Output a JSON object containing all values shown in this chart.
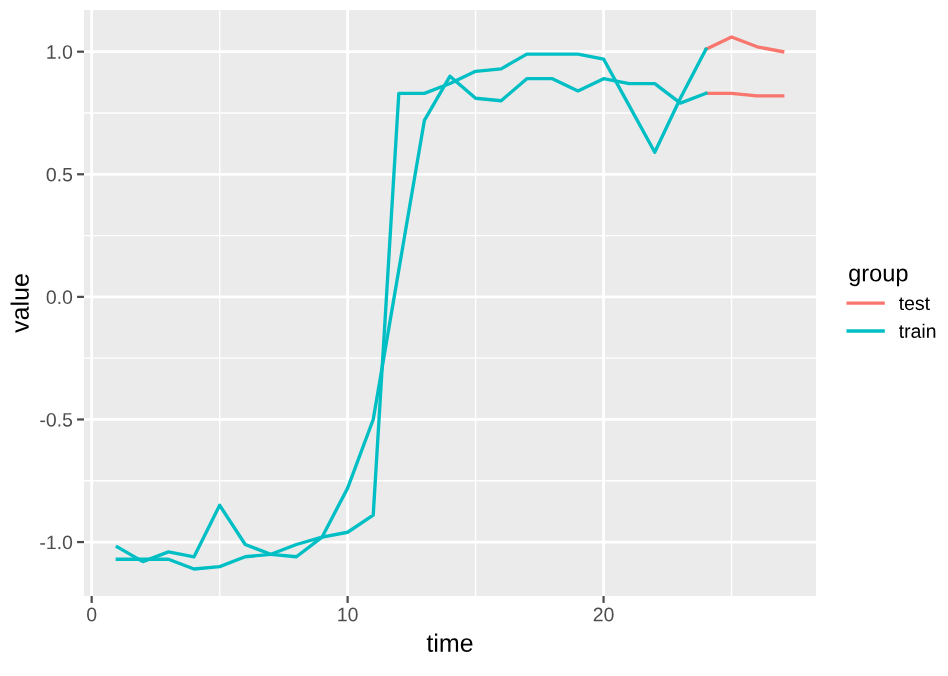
{
  "chart_data": {
    "type": "line",
    "xlabel": "time",
    "ylabel": "value",
    "legend_title": "group",
    "series": [
      {
        "name": "test",
        "color": "#f8766d",
        "x": [
          24,
          25,
          26,
          27
        ],
        "values": [
          0.83,
          0.83,
          0.82,
          0.82
        ]
      },
      {
        "color": "#f8766d",
        "x": [
          24,
          25,
          26,
          27
        ],
        "values": [
          1.01,
          1.06,
          1.02,
          1.0
        ]
      },
      {
        "name": "train",
        "color": "#00bfc4",
        "x": [
          1,
          2,
          3,
          4,
          5,
          6,
          7,
          8,
          9,
          10,
          11,
          12,
          13,
          14,
          15,
          16,
          17,
          18,
          19,
          20,
          21,
          22,
          23,
          24
        ],
        "values": [
          -1.07,
          -1.07,
          -1.07,
          -1.11,
          -1.1,
          -1.06,
          -1.05,
          -1.01,
          -0.98,
          -0.78,
          -0.5,
          0.11,
          0.72,
          0.9,
          0.81,
          0.8,
          0.89,
          0.89,
          0.84,
          0.89,
          0.87,
          0.87,
          0.79,
          0.83
        ]
      },
      {
        "color": "#00bfc4",
        "x": [
          1,
          2,
          3,
          4,
          5,
          6,
          7,
          8,
          9,
          10,
          11,
          12,
          13,
          14,
          15,
          16,
          17,
          18,
          19,
          20,
          21,
          22,
          23,
          24
        ],
        "values": [
          -1.02,
          -1.08,
          -1.04,
          -1.06,
          -0.85,
          -1.01,
          -1.05,
          -1.06,
          -0.98,
          -0.96,
          -0.89,
          0.83,
          0.83,
          0.87,
          0.92,
          0.93,
          0.99,
          0.99,
          0.99,
          0.97,
          0.78,
          0.59,
          0.81,
          1.01
        ]
      }
    ],
    "xlim": [
      -0.3,
      28.3
    ],
    "ylim": [
      -1.22,
      1.17
    ],
    "xticks": [
      0,
      10,
      20
    ],
    "yticks": [
      {
        "value": -1.0,
        "label": "-1.0"
      },
      {
        "value": -0.5,
        "label": "-0.5"
      },
      {
        "value": 0.0,
        "label": "0.0"
      },
      {
        "value": 0.5,
        "label": "0.5"
      },
      {
        "value": 1.0,
        "label": "1.0"
      }
    ],
    "grid": true,
    "legend": "right",
    "marker": "none",
    "line_style": "solid"
  }
}
